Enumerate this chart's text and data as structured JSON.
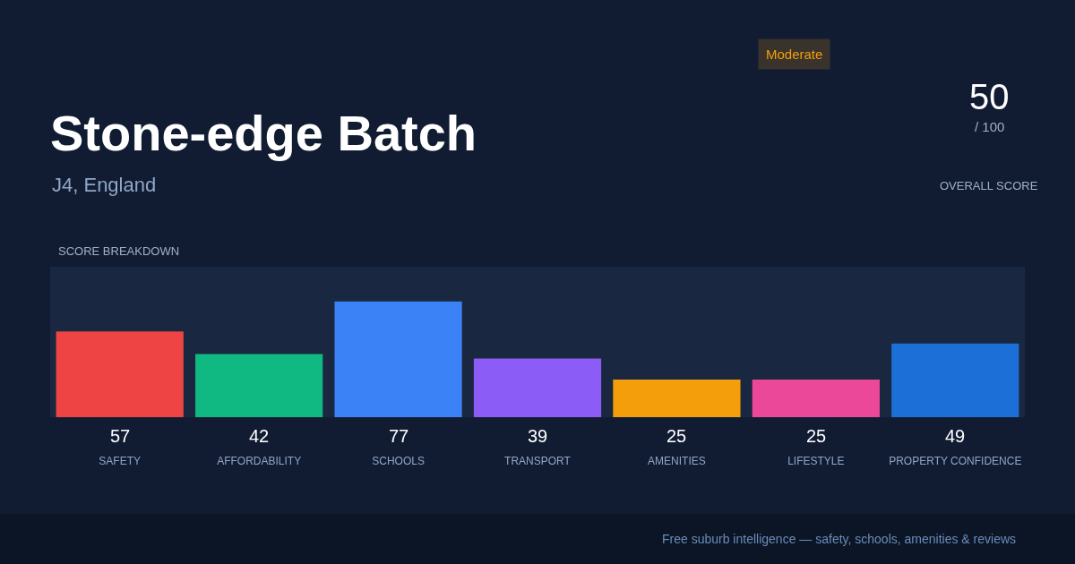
{
  "chart_data": {
    "type": "bar",
    "title": "Stone-edge Batch",
    "subtitle": "J4, England",
    "categories": [
      "SAFETY",
      "AFFORDABILITY",
      "SCHOOLS",
      "TRANSPORT",
      "AMENITIES",
      "LIFESTYLE",
      "PROPERTY CONFIDENCE"
    ],
    "values": [
      57,
      42,
      77,
      39,
      25,
      25,
      49
    ],
    "colors": [
      "#ef4444",
      "#10b981",
      "#3b82f6",
      "#8b5cf6",
      "#f59e0b",
      "#ec4899",
      "#1d6fd8"
    ],
    "ylim": [
      0,
      100
    ],
    "data_labels": true,
    "tick_labels": "x",
    "grid": false,
    "legend": false,
    "annotations": [
      "Moderate",
      "50",
      "/ 100",
      "OVERALL SCORE",
      "SCORE BREAKDOWN",
      "Free suburb intelligence — safety, schools, amenities & reviews"
    ]
  }
}
